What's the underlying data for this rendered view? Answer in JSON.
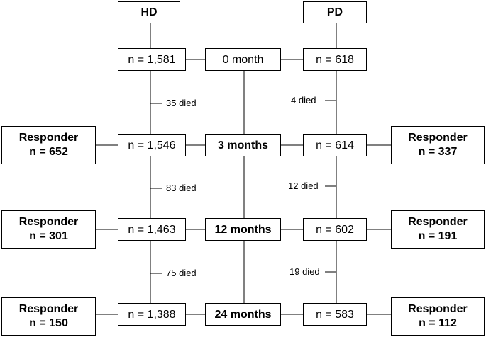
{
  "groups": {
    "hd": "HD",
    "pd": "PD"
  },
  "timepoints": [
    "0 month",
    "3 months",
    "12 months",
    "24 months"
  ],
  "hd_counts": [
    "n = 1,581",
    "n = 1,546",
    "n = 1,463",
    "n = 1,388"
  ],
  "pd_counts": [
    "n = 618",
    "n = 614",
    "n = 602",
    "n = 583"
  ],
  "hd_died": [
    "35 died",
    "83 died",
    "75 died"
  ],
  "pd_died": [
    "4 died",
    "12 died",
    "19 died"
  ],
  "responder_label": "Responder",
  "hd_responders": [
    "n = 652",
    "n = 301",
    "n = 150"
  ],
  "pd_responders": [
    "n = 337",
    "n = 191",
    "n = 112"
  ]
}
